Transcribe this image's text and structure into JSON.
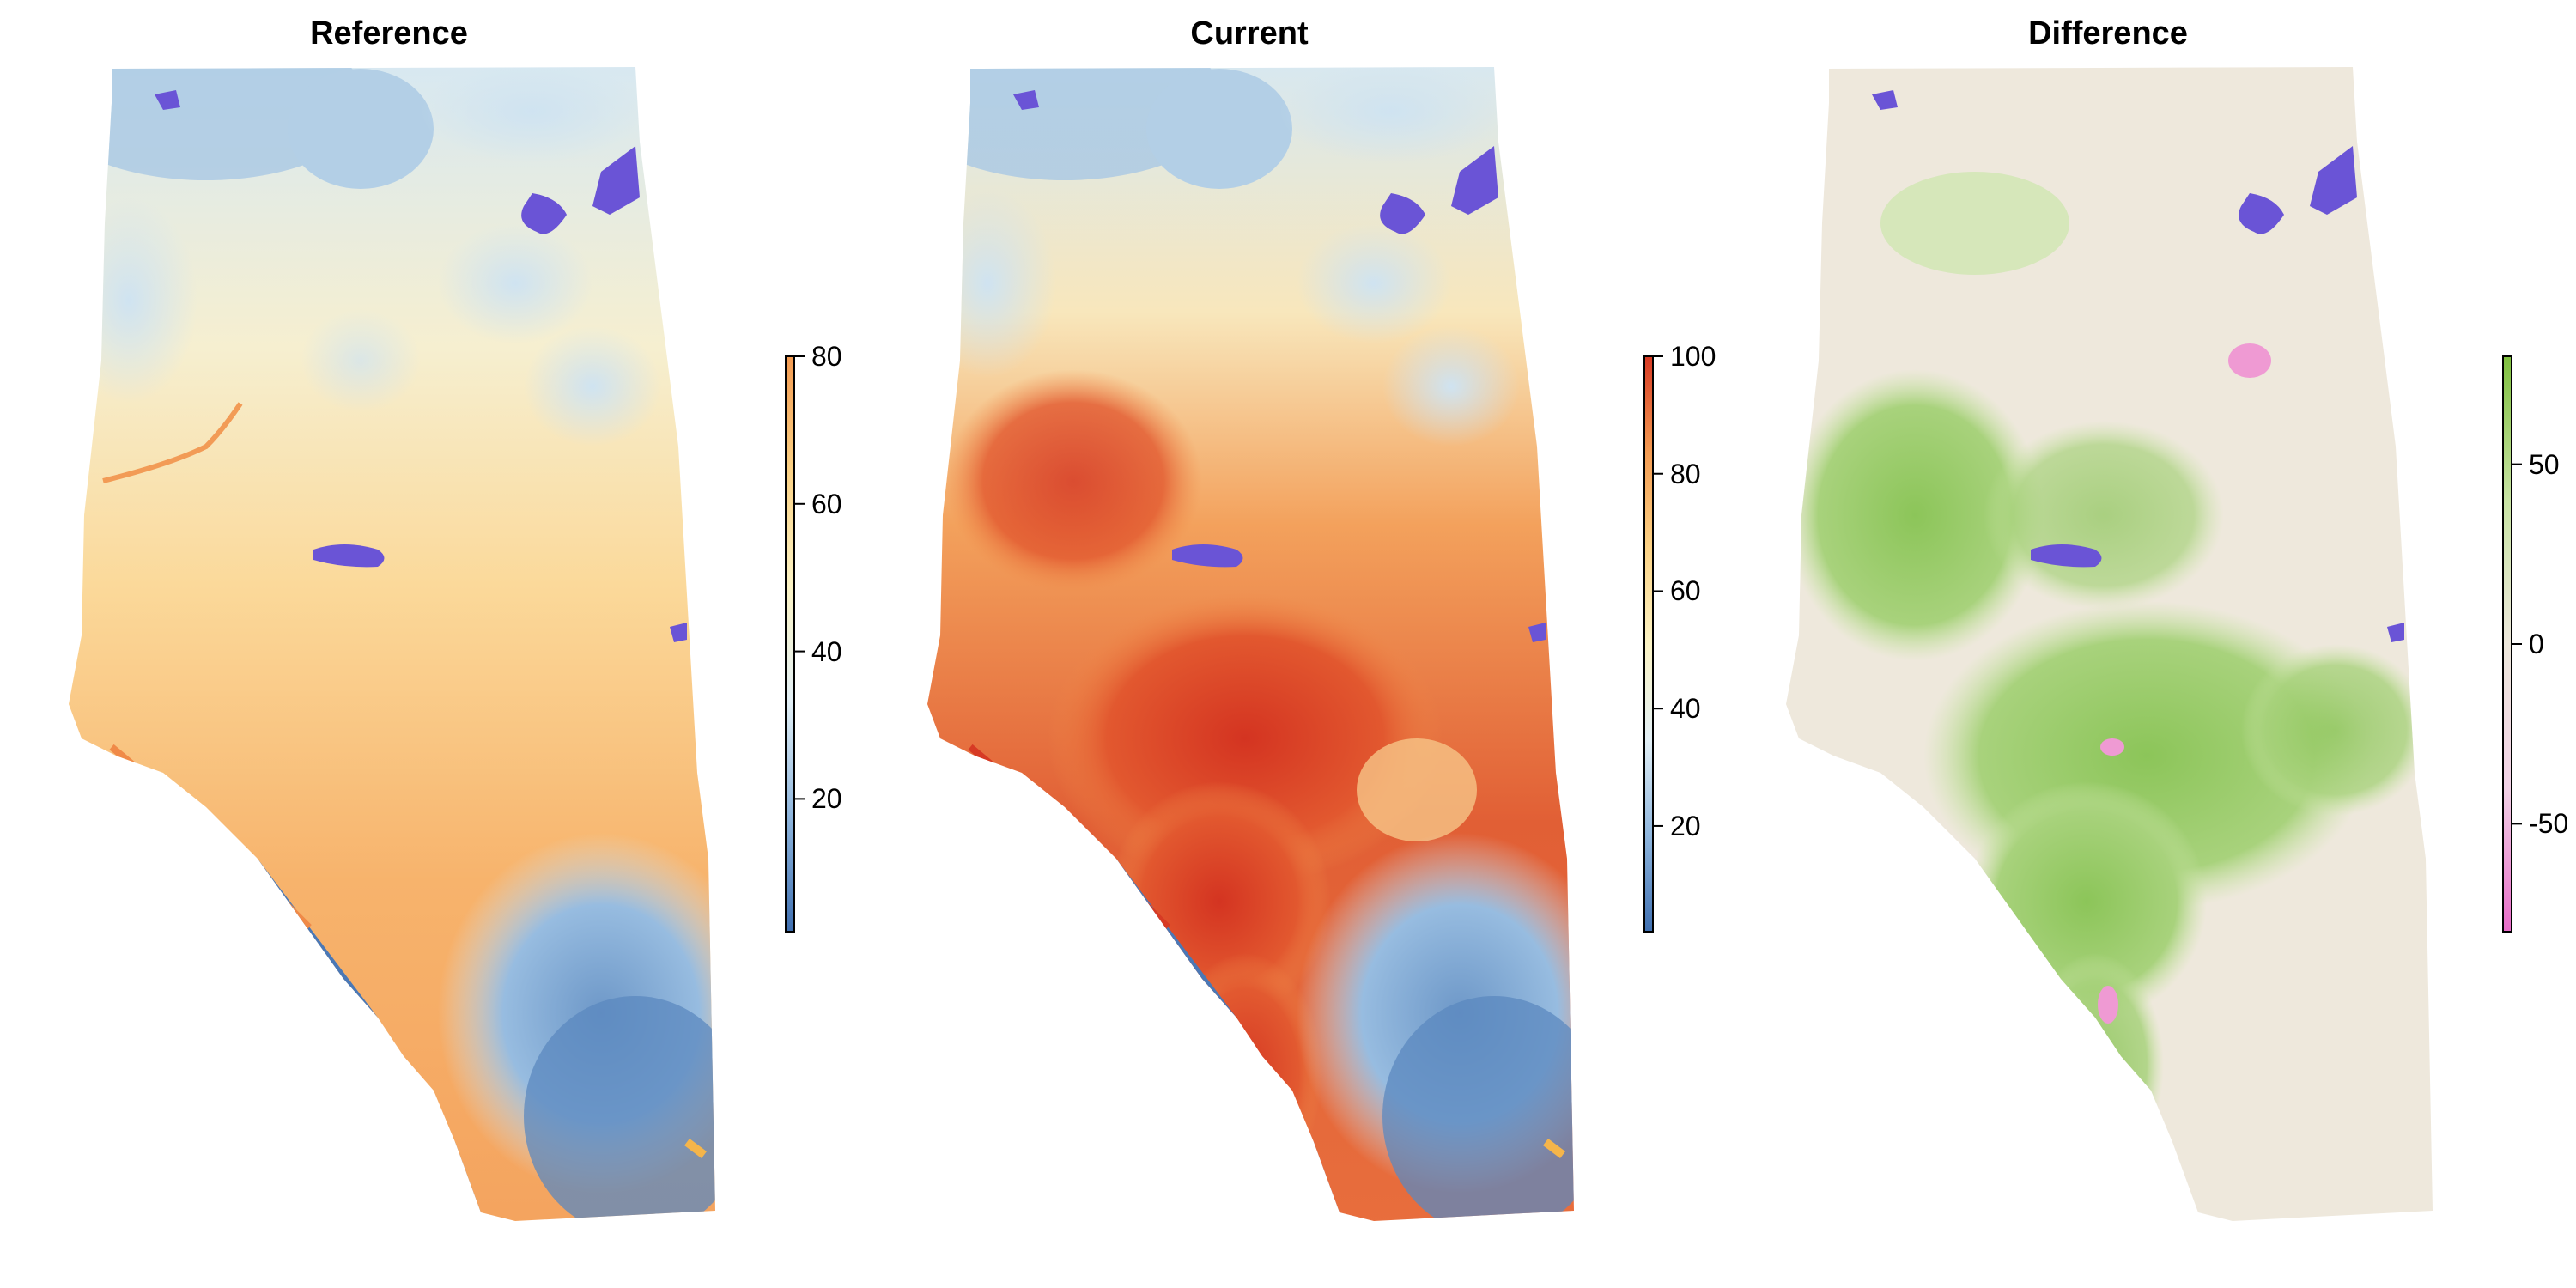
{
  "panels": [
    {
      "title": "Reference",
      "legend": {
        "ticks": [
          20,
          40,
          60,
          80
        ],
        "min": 2,
        "max": 80,
        "colors": [
          "#3f6fb0",
          "#8fb6dd",
          "#e3f0f6",
          "#fbf3c5",
          "#fbd286",
          "#f39b52"
        ]
      }
    },
    {
      "title": "Current",
      "legend": {
        "ticks": [
          20,
          40,
          60,
          80,
          100
        ],
        "min": 2,
        "max": 100,
        "colors": [
          "#3f6fb0",
          "#8fb6dd",
          "#e3f0f6",
          "#fbf3c5",
          "#fbd286",
          "#f39b52",
          "#d73a24"
        ]
      }
    },
    {
      "title": "Difference",
      "legend": {
        "ticks": [
          -50,
          0,
          50
        ],
        "tick_labels": [
          "-50",
          "0",
          "50"
        ],
        "min": -80,
        "max": 80,
        "colors": [
          "#e86bc8",
          "#f2d2e6",
          "#eee8dc",
          "#c9e4a4",
          "#7fbf3f"
        ]
      }
    }
  ],
  "colors": {
    "water": "#6a54d6",
    "background": "#ffffff",
    "difference_base": "#eee8dc"
  }
}
